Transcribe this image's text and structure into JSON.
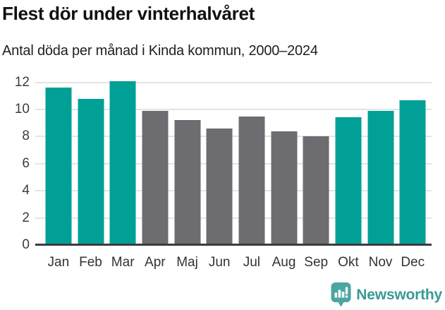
{
  "header": {
    "title": "Flest dör under vinterhalvåret",
    "subtitle": "Antal döda per månad i Kinda kommun, 2000–2024"
  },
  "chart_data": {
    "type": "bar",
    "categories": [
      "Jan",
      "Feb",
      "Mar",
      "Apr",
      "Maj",
      "Jun",
      "Jul",
      "Aug",
      "Sep",
      "Okt",
      "Nov",
      "Dec"
    ],
    "values": [
      11.6,
      10.8,
      12.1,
      9.9,
      9.2,
      8.6,
      9.5,
      8.4,
      8.0,
      9.4,
      9.9,
      10.7
    ],
    "groups": [
      "winter",
      "winter",
      "winter",
      "summer",
      "summer",
      "summer",
      "summer",
      "summer",
      "summer",
      "winter",
      "winter",
      "winter"
    ],
    "group_colors": {
      "winter": "#00a097",
      "summer": "#6c6c71"
    },
    "title": "Flest dör under vinterhalvåret",
    "xlabel": "",
    "ylabel": "",
    "yticks": [
      0,
      2,
      4,
      6,
      8,
      10,
      12
    ],
    "ylim": [
      0,
      12.6
    ],
    "grid": "horizontal",
    "gridline_color": "#e4e4e4",
    "axis_color": "#3c3c3c",
    "legend": "none"
  },
  "footer": {
    "brand": "Newsworthy",
    "brand_color": "#399a94",
    "logo_color": "#4ba5a0",
    "logo_icon": "bar-chart-speech-bubble-icon"
  }
}
